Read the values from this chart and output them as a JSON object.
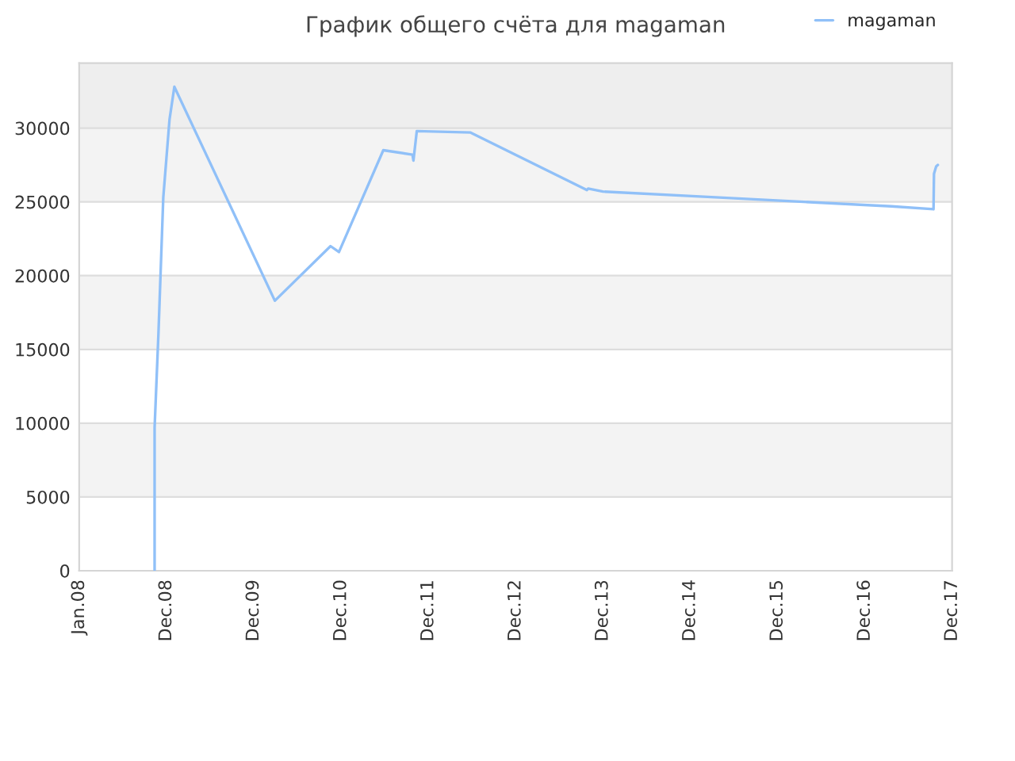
{
  "chart_data": {
    "type": "line",
    "title": "График общего счёта для magaman",
    "x": [
      "2008-11-09",
      "2008-11-09",
      "2008-11-25",
      "2008-12-15",
      "2009-01-10",
      "2009-01-30",
      "2010-03-23",
      "2010-11-09",
      "2010-12-14",
      "2011-06-16",
      "2011-10-15",
      "2011-10-19",
      "2011-11-02",
      "2012-06-12",
      "2013-10-08",
      "2013-10-13",
      "2013-12-13",
      "2015-04-10",
      "2016-03-26",
      "2017-03-24",
      "2017-09-15",
      "2017-09-17",
      "2017-09-26",
      "2017-10-03"
    ],
    "series": [
      {
        "name": "magaman",
        "color": "#90c0f8",
        "values": [
          0,
          9700,
          16100,
          25300,
          30600,
          32800,
          18300,
          22000,
          21600,
          28500,
          28200,
          27800,
          29800,
          29700,
          25800,
          25900,
          25700,
          25300,
          25000,
          24700,
          24500,
          26900,
          27400,
          27500
        ]
      }
    ],
    "xlim": [
      "2008-01-01",
      "2017-12-01"
    ],
    "xticks": [
      {
        "value": "2008-01-01",
        "label": "Jan.08"
      },
      {
        "value": "2008-12-28",
        "label": "Dec.08"
      },
      {
        "value": "2009-12-25",
        "label": "Dec.09"
      },
      {
        "value": "2010-12-23",
        "label": "Dec.10"
      },
      {
        "value": "2011-12-20",
        "label": "Dec.11"
      },
      {
        "value": "2012-12-16",
        "label": "Dec.12"
      },
      {
        "value": "2013-12-13",
        "label": "Dec.13"
      },
      {
        "value": "2014-12-10",
        "label": "Dec.14"
      },
      {
        "value": "2015-12-08",
        "label": "Dec.15"
      },
      {
        "value": "2016-12-04",
        "label": "Dec.16"
      },
      {
        "value": "2017-12-01",
        "label": "Dec.17"
      }
    ],
    "ylim": [
      0,
      34400
    ],
    "yticks": [
      0,
      5000,
      10000,
      15000,
      20000,
      25000,
      30000
    ],
    "grid": "y",
    "legend": "top right",
    "marker": "none",
    "line_style": "solid"
  }
}
